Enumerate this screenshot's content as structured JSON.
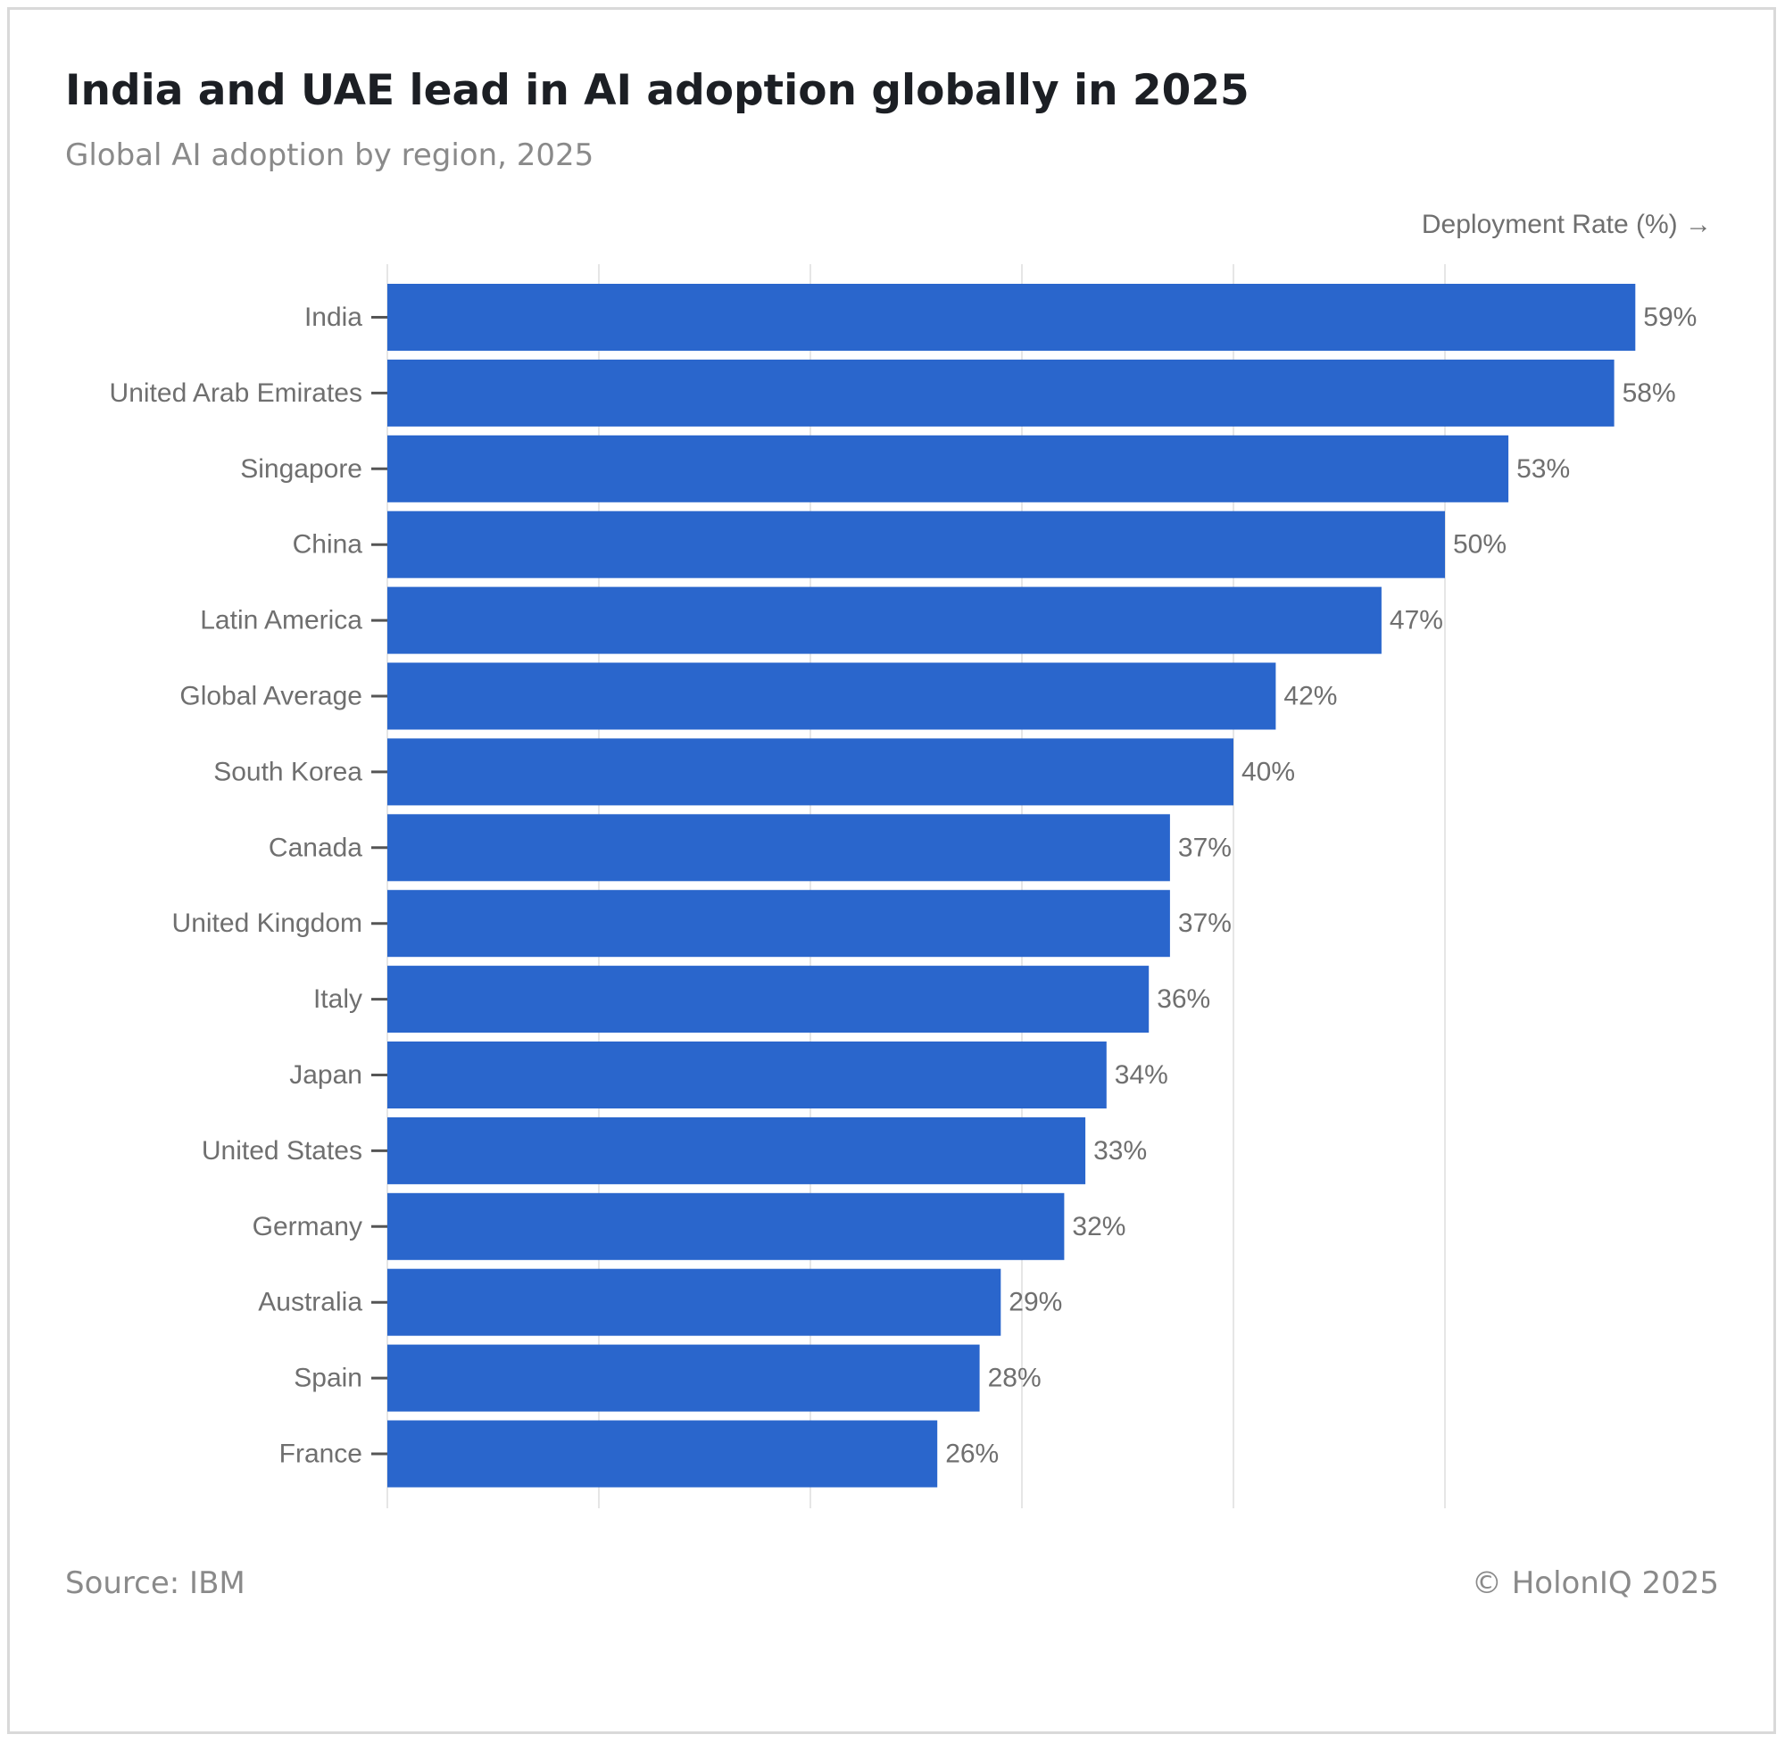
{
  "title": "India and UAE lead in AI adoption globally in 2025",
  "subtitle": "Global AI adoption by region, 2025",
  "axis_title": "Deployment Rate (%) →",
  "source": "Source: IBM",
  "copyright": "© HolonIQ 2025",
  "colors": {
    "bar": "#2a66cc",
    "grid": "#e6e6e6",
    "text": "#6f6f6f"
  },
  "chart_data": {
    "type": "bar",
    "orientation": "horizontal",
    "title": "India and UAE lead in AI adoption globally in 2025",
    "subtitle": "Global AI adoption by region, 2025",
    "xlabel": "Deployment Rate (%) →",
    "ylabel": "",
    "xlim": [
      0,
      60
    ],
    "grid": true,
    "gridlines": [
      0,
      10,
      20,
      30,
      40,
      50
    ],
    "categories": [
      "India",
      "United Arab Emirates",
      "Singapore",
      "China",
      "Latin America",
      "Global Average",
      "South Korea",
      "Canada",
      "United Kingdom",
      "Italy",
      "Japan",
      "United States",
      "Germany",
      "Australia",
      "Spain",
      "France"
    ],
    "values": [
      59,
      58,
      53,
      50,
      47,
      42,
      40,
      37,
      37,
      36,
      34,
      33,
      32,
      29,
      28,
      26
    ],
    "value_labels": [
      "59%",
      "58%",
      "53%",
      "50%",
      "47%",
      "42%",
      "40%",
      "37%",
      "37%",
      "36%",
      "34%",
      "33%",
      "32%",
      "29%",
      "28%",
      "26%"
    ]
  }
}
